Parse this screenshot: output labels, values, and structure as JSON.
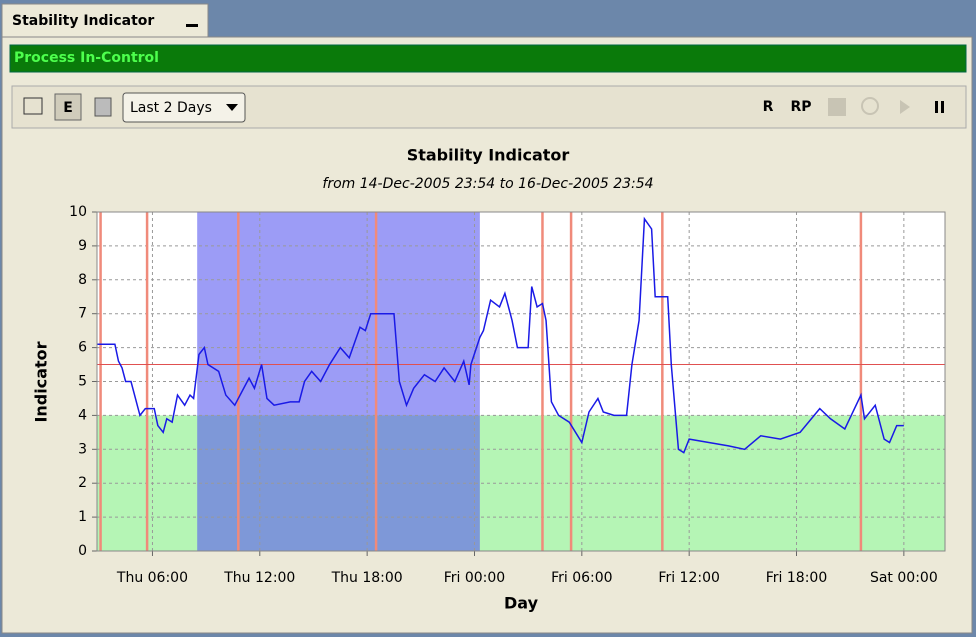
{
  "window": {
    "tab_title": "Stability Indicator",
    "status": "Process In-Control",
    "view_button": "E",
    "range_select": "Last 2 Days",
    "buttons": [
      "R",
      "RP"
    ]
  },
  "chart_data": {
    "type": "line",
    "title": "Stability Indicator",
    "subtitle": "from 14-Dec-2005 23:54 to 16-Dec-2005 23:54",
    "x_label": "Day",
    "y_label": "Indicator",
    "xlim": [
      2.9,
      50.3
    ],
    "ylim": [
      0,
      10
    ],
    "xticks": [
      {
        "value": 6,
        "label": "Thu 06:00"
      },
      {
        "value": 12,
        "label": "Thu 12:00"
      },
      {
        "value": 18,
        "label": "Thu 18:00"
      },
      {
        "value": 24,
        "label": "Fri 00:00"
      },
      {
        "value": 30,
        "label": "Fri 06:00"
      },
      {
        "value": 36,
        "label": "Fri 12:00"
      },
      {
        "value": 42,
        "label": "Fri 18:00"
      },
      {
        "value": 48,
        "label": "Sat 00:00"
      }
    ],
    "yticks": [
      0,
      1,
      2,
      3,
      4,
      5,
      6,
      7,
      8,
      9,
      10
    ],
    "grid": true,
    "color": "#1a1ae6",
    "zone": [
      0,
      4
    ],
    "zone_color": "#b5f5b5",
    "band": [
      8.5,
      24.3
    ],
    "band_color": "#5a5af0",
    "limit": 5.5,
    "limit_color": "#e05050",
    "markers": [
      3.1,
      5.7,
      10.8,
      18.5,
      27.8,
      29.4,
      34.5,
      45.6
    ],
    "marker_color": "#f08a7a",
    "series": [
      {
        "color": "#1a1ae6",
        "x": [
          2.9,
          3.9,
          4.1,
          4.3,
          4.5,
          4.8,
          5.0,
          5.3,
          5.6,
          6.1,
          6.3,
          6.6,
          6.8,
          7.1,
          7.4,
          7.8,
          8.1,
          8.3,
          8.6,
          8.9,
          9.1,
          9.7,
          10.1,
          10.6,
          10.8,
          11.1,
          11.4,
          11.7,
          12.1,
          12.4,
          12.8,
          13.7,
          14.2,
          14.5,
          14.9,
          15.4,
          15.9,
          16.5,
          17.0,
          17.6,
          17.9,
          18.2,
          19.5,
          19.8,
          20.2,
          20.6,
          21.2,
          21.8,
          22.3,
          22.9,
          23.4,
          23.7,
          23.8,
          24.3,
          24.5,
          24.9,
          25.4,
          25.7,
          26.1,
          26.4,
          27.0,
          27.2,
          27.5,
          27.8,
          28.0,
          28.3,
          28.7,
          29.3,
          30.0,
          30.4,
          30.9,
          31.2,
          31.8,
          32.5,
          32.8,
          33.2,
          33.5,
          33.9,
          34.1,
          34.8,
          35.0,
          35.4,
          35.7,
          36.0,
          37.1,
          38.2,
          39.1,
          40.0,
          41.1,
          42.2,
          43.3,
          43.9,
          44.7,
          45.6,
          45.8,
          46.4,
          46.9,
          47.2,
          47.6,
          48.0
        ],
        "values": [
          6.1,
          6.1,
          5.6,
          5.4,
          5.0,
          5.0,
          4.6,
          4.0,
          4.2,
          4.2,
          3.7,
          3.5,
          3.9,
          3.8,
          4.6,
          4.3,
          4.6,
          4.5,
          5.8,
          6.0,
          5.5,
          5.3,
          4.6,
          4.3,
          4.5,
          4.8,
          5.1,
          4.8,
          5.5,
          4.5,
          4.3,
          4.4,
          4.4,
          5.0,
          5.3,
          5.0,
          5.5,
          6.0,
          5.7,
          6.6,
          6.5,
          7.0,
          7.0,
          5.0,
          4.3,
          4.8,
          5.2,
          5.0,
          5.4,
          5.0,
          5.6,
          4.9,
          5.5,
          6.3,
          6.5,
          7.4,
          7.2,
          7.6,
          6.8,
          6.0,
          6.0,
          7.8,
          7.2,
          7.3,
          6.8,
          4.4,
          4.0,
          3.8,
          3.2,
          4.1,
          4.5,
          4.1,
          4.0,
          4.0,
          5.5,
          6.8,
          9.8,
          9.5,
          7.5,
          7.5,
          5.5,
          3.0,
          2.9,
          3.3,
          3.2,
          3.1,
          3.0,
          3.4,
          3.3,
          3.5,
          4.2,
          3.9,
          3.6,
          4.6,
          3.9,
          4.3,
          3.3,
          3.2,
          3.7,
          3.7
        ]
      }
    ]
  }
}
